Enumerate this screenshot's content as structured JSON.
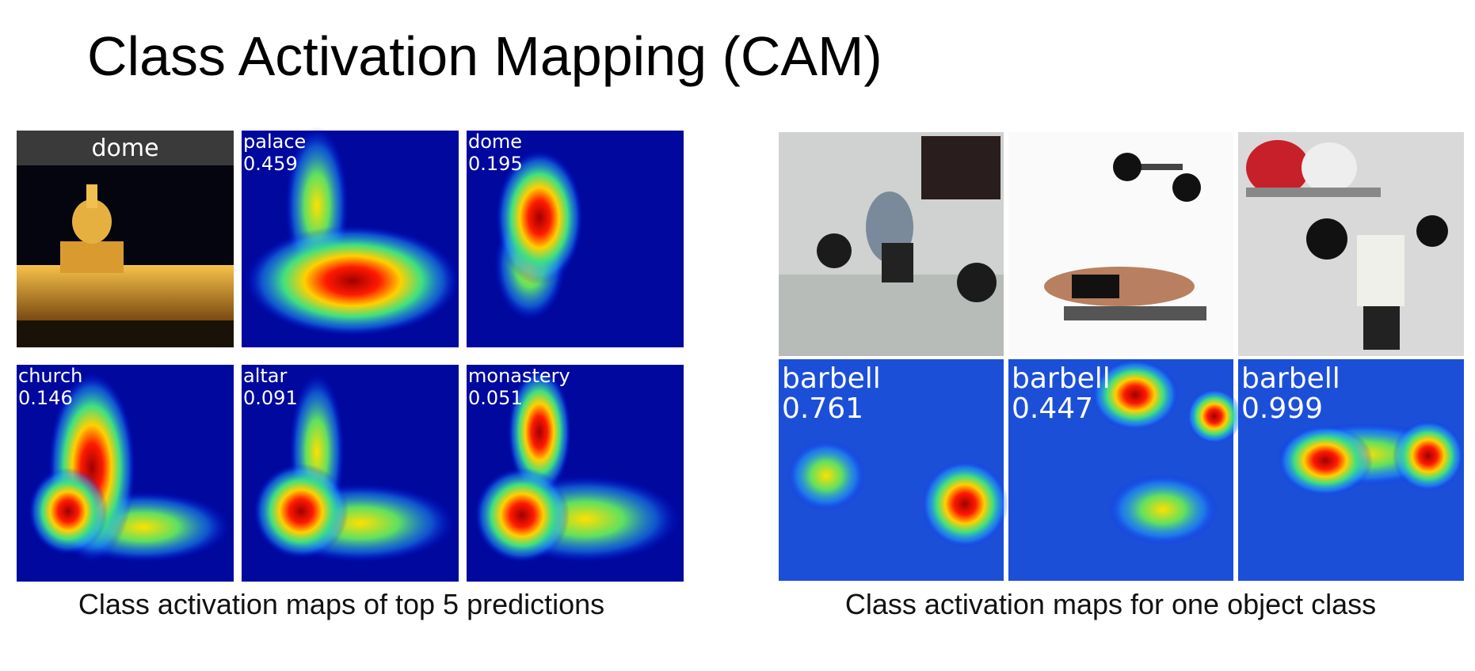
{
  "title": "Class Activation Mapping (CAM)",
  "left_panel": {
    "tiles": [
      {
        "label": "dome"
      },
      {
        "label": "palace",
        "score": "0.459"
      },
      {
        "label": "dome",
        "score": "0.195"
      },
      {
        "label": "church",
        "score": "0.146"
      },
      {
        "label": "altar",
        "score": "0.091"
      },
      {
        "label": "monastery",
        "score": "0.051"
      }
    ],
    "caption": "Class activation maps of top 5 predictions"
  },
  "right_panel": {
    "tiles": [
      {
        "label": "barbell",
        "score": "0.761"
      },
      {
        "label": "barbell",
        "score": "0.447"
      },
      {
        "label": "barbell",
        "score": "0.999"
      }
    ],
    "caption": "Class activation maps for one object class"
  }
}
